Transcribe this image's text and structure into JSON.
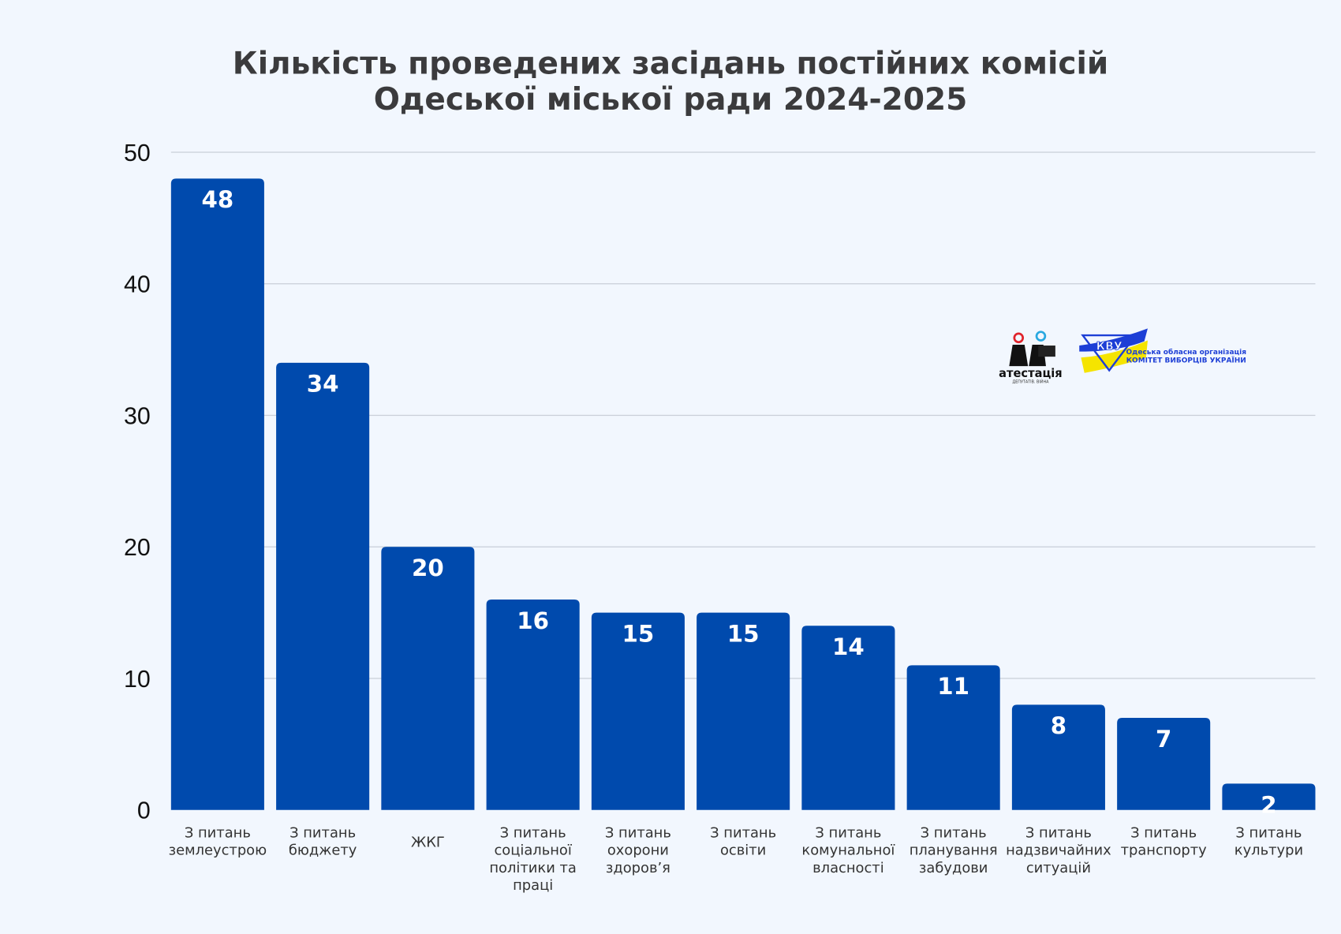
{
  "chart_data": {
    "type": "bar",
    "title": [
      "Кількість проведених засідань постійних комісій",
      "Одеської міської ради 2024-2025"
    ],
    "xlabel": "",
    "ylabel": "",
    "ylim": [
      0,
      50
    ],
    "yticks": [
      "0",
      "10",
      "20",
      "30",
      "40",
      "50"
    ],
    "grid": true,
    "bar_color": "#004aad",
    "categories": [
      [
        "З питань",
        "землеустрою"
      ],
      [
        "З питань",
        "бюджету"
      ],
      [
        "ЖКГ"
      ],
      [
        "З питань",
        "соціальної",
        "політики та",
        "праці"
      ],
      [
        "З питань",
        "охорони",
        "здоров’я"
      ],
      [
        "З питань",
        "освіти"
      ],
      [
        "З питань",
        "комунальної",
        "власності"
      ],
      [
        "З питань",
        "планування",
        "забудови"
      ],
      [
        "З питань",
        "надзвичайних",
        "ситуацій"
      ],
      [
        "З питань",
        "транспорту"
      ],
      [
        "З питань",
        "культури"
      ]
    ],
    "values": [
      48,
      34,
      20,
      16,
      15,
      15,
      14,
      11,
      8,
      7,
      2
    ]
  },
  "logos": {
    "atestatsia": {
      "text": "атестація",
      "subtext": "ДЕПУТАТІВ. ВІЙНА"
    },
    "kvu": {
      "mark": "КВУ",
      "line1": "Одеська обласна організація",
      "line2": "КОМІТЕТ ВИБОРЦІВ УКРАЇНИ"
    }
  }
}
